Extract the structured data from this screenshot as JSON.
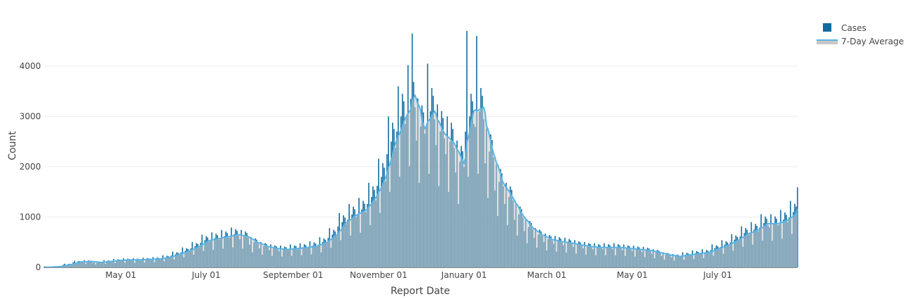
{
  "chart_data": {
    "type": "bar",
    "xlabel": "Report Date",
    "ylabel": "Count",
    "xlim": [
      "2020-03-07",
      "2021-08-27"
    ],
    "ylim": [
      0,
      4800
    ],
    "grid": true,
    "legend_placement": "top-right",
    "x_ticks": [
      {
        "date": "2020-05-01",
        "label": "May 01"
      },
      {
        "date": "2020-07-01",
        "label": "July 01"
      },
      {
        "date": "2020-09-01",
        "label": "September 01"
      },
      {
        "date": "2020-11-01",
        "label": "November 01"
      },
      {
        "date": "2021-01-01",
        "label": "January 01"
      },
      {
        "date": "2021-03-01",
        "label": "March 01"
      },
      {
        "date": "2021-05-01",
        "label": "May 01"
      },
      {
        "date": "2021-07-01",
        "label": "July 01"
      }
    ],
    "y_ticks": [
      0,
      1000,
      2000,
      3000,
      4000
    ],
    "colors": {
      "bars": "#0f6b9e",
      "average_line": "#5ab4e6",
      "average_fill": "#c8c8c8"
    },
    "series": [
      {
        "name": "Cases",
        "type": "bar",
        "daily_from": "2020-03-07",
        "values": [
          5,
          6,
          3,
          5,
          6,
          6,
          5,
          18,
          24,
          12,
          20,
          23,
          22,
          19,
          54,
          72,
          36,
          60,
          69,
          66,
          57,
          99,
          132,
          66,
          110,
          127,
          121,
          105,
          108,
          144,
          72,
          120,
          138,
          132,
          114,
          90,
          120,
          60,
          100,
          115,
          110,
          95,
          108,
          144,
          72,
          120,
          138,
          132,
          114,
          126,
          168,
          84,
          140,
          161,
          154,
          133,
          135,
          180,
          90,
          150,
          173,
          165,
          143,
          135,
          180,
          90,
          150,
          173,
          165,
          143,
          144,
          192,
          96,
          160,
          184,
          176,
          152,
          153,
          204,
          102,
          170,
          196,
          187,
          162,
          180,
          240,
          120,
          200,
          230,
          220,
          190,
          234,
          312,
          156,
          260,
          299,
          286,
          247,
          297,
          396,
          198,
          330,
          380,
          363,
          314,
          378,
          504,
          252,
          420,
          483,
          462,
          399,
          486,
          648,
          324,
          540,
          621,
          594,
          513,
          522,
          696,
          348,
          580,
          667,
          638,
          551,
          558,
          744,
          372,
          620,
          713,
          682,
          589,
          594,
          792,
          396,
          660,
          759,
          726,
          627,
          558,
          744,
          372,
          620,
          713,
          682,
          589,
          450,
          600,
          300,
          500,
          575,
          550,
          475,
          378,
          504,
          252,
          420,
          483,
          462,
          399,
          342,
          456,
          228,
          380,
          437,
          418,
          361,
          324,
          432,
          216,
          360,
          414,
          396,
          342,
          342,
          456,
          228,
          380,
          437,
          418,
          361,
          360,
          480,
          240,
          400,
          460,
          440,
          380,
          387,
          516,
          258,
          430,
          495,
          473,
          409,
          450,
          600,
          300,
          500,
          575,
          550,
          475,
          585,
          780,
          390,
          650,
          748,
          715,
          618,
          810,
          1080,
          540,
          900,
          1035,
          990,
          855,
          945,
          1260,
          630,
          1050,
          1208,
          1155,
          998,
          1035,
          1380,
          690,
          1150,
          1323,
          1265,
          1093,
          1260,
          1680,
          840,
          1400,
          1610,
          1540,
          1330,
          1620,
          2160,
          1080,
          1800,
          2070,
          1980,
          1710,
          2250,
          3000,
          1500,
          2500,
          2875,
          2750,
          2375,
          2700,
          3600,
          1800,
          3000,
          3450,
          3300,
          2850,
          3015,
          4020,
          2010,
          3350,
          4650,
          3685,
          3183,
          2520,
          3360,
          1680,
          2800,
          3220,
          3080,
          2660,
          2790,
          4050,
          1860,
          3100,
          3565,
          3410,
          2945,
          2430,
          3240,
          1620,
          2700,
          3105,
          2970,
          2565,
          2250,
          3000,
          1500,
          2500,
          2875,
          2750,
          2375,
          1890,
          2520,
          1260,
          2100,
          2415,
          2310,
          1995,
          2700,
          4700,
          1800,
          3000,
          3450,
          3300,
          2850,
          2790,
          4600,
          1860,
          3100,
          3565,
          3410,
          2945,
          2070,
          2760,
          1380,
          2300,
          2645,
          2530,
          2185,
          1530,
          2040,
          1020,
          1700,
          1955,
          1870,
          1615,
          1260,
          1680,
          840,
          1400,
          1610,
          1540,
          1330,
          945,
          1260,
          630,
          1050,
          1208,
          1155,
          998,
          720,
          960,
          480,
          800,
          920,
          880,
          760,
          585,
          780,
          390,
          650,
          748,
          715,
          618,
          504,
          672,
          336,
          560,
          644,
          616,
          532,
          468,
          624,
          312,
          520,
          598,
          572,
          494,
          441,
          588,
          294,
          490,
          564,
          539,
          466,
          405,
          540,
          270,
          450,
          518,
          495,
          428,
          378,
          504,
          252,
          420,
          483,
          462,
          399,
          360,
          480,
          240,
          400,
          460,
          440,
          380,
          360,
          480,
          240,
          400,
          460,
          440,
          380,
          360,
          480,
          240,
          400,
          460,
          440,
          380,
          342,
          456,
          228,
          380,
          437,
          418,
          361,
          324,
          432,
          216,
          360,
          414,
          396,
          342,
          306,
          408,
          204,
          340,
          391,
          374,
          323,
          270,
          360,
          180,
          300,
          345,
          330,
          285,
          225,
          300,
          150,
          250,
          288,
          275,
          238,
          198,
          264,
          132,
          220,
          253,
          242,
          209,
          225,
          300,
          150,
          250,
          288,
          275,
          238,
          252,
          336,
          168,
          280,
          322,
          308,
          266,
          270,
          360,
          180,
          300,
          345,
          330,
          285,
          342,
          456,
          228,
          380,
          437,
          418,
          361,
          405,
          540,
          270,
          450,
          518,
          495,
          428,
          495,
          660,
          330,
          550,
          633,
          605,
          523,
          612,
          816,
          408,
          680,
          782,
          748,
          646,
          675,
          900,
          450,
          750,
          863,
          825,
          713,
          792,
          1056,
          528,
          880,
          1012,
          968,
          836,
          792,
          1056,
          528,
          880,
          1012,
          968,
          836,
          855,
          1140,
          570,
          950,
          1093,
          1045,
          903,
          990,
          1320,
          660,
          1100,
          1265,
          1210,
          1590
        ]
      },
      {
        "name": "7-Day Average",
        "type": "line",
        "window_days": 7
      }
    ]
  }
}
